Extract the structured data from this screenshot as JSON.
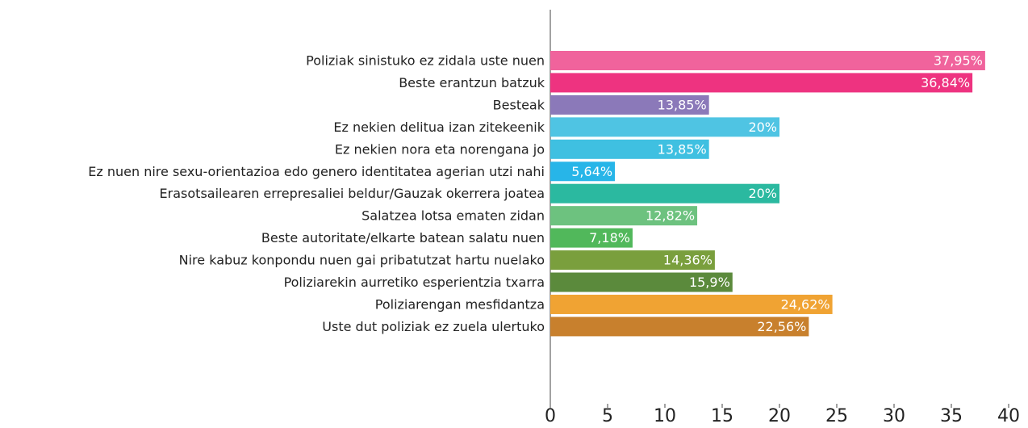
{
  "chart_data": {
    "type": "bar",
    "orientation": "horizontal",
    "categories": [
      "Poliziak sinistuko ez zidala uste nuen",
      "Beste erantzun batzuk",
      "Besteak",
      "Ez nekien delitua izan zitekeenik",
      "Ez nekien nora eta norengana jo",
      "Ez nuen nire sexu-orientazioa edo genero identitatea agerian utzi nahi",
      "Erasotsailearen errepresaliei beldur/Gauzak okerrera joatea",
      "Salatzea lotsa ematen zidan",
      "Beste autoritate/elkarte batean salatu nuen",
      "Nire kabuz konpondu nuen gai pribatutzat hartu nuelako",
      "Poliziarekin aurretiko esperientzia txarra",
      "Poliziarengan mesfidantza",
      "Uste dut poliziak ez zuela ulertuko"
    ],
    "values": [
      37.95,
      36.84,
      13.85,
      20,
      13.85,
      5.64,
      20,
      12.82,
      7.18,
      14.36,
      15.9,
      24.62,
      22.56
    ],
    "value_labels": [
      "37,95%",
      "36,84%",
      "13,85%",
      "20%",
      "13,85%",
      "5,64%",
      "20%",
      "12,82%",
      "7,18%",
      "14,36%",
      "15,9%",
      "24,62%",
      "22,56%"
    ],
    "colors": [
      "#f0639c",
      "#ee3380",
      "#8b79b9",
      "#4fc4e3",
      "#3fc0e1",
      "#27b5e8",
      "#2bb9a0",
      "#6dc27f",
      "#51b85b",
      "#7a9f3d",
      "#5b8a3c",
      "#f0a333",
      "#c8802d"
    ],
    "xlim": [
      0,
      40
    ],
    "xticks": [
      0,
      5,
      10,
      15,
      20,
      25,
      30,
      35,
      40
    ]
  }
}
